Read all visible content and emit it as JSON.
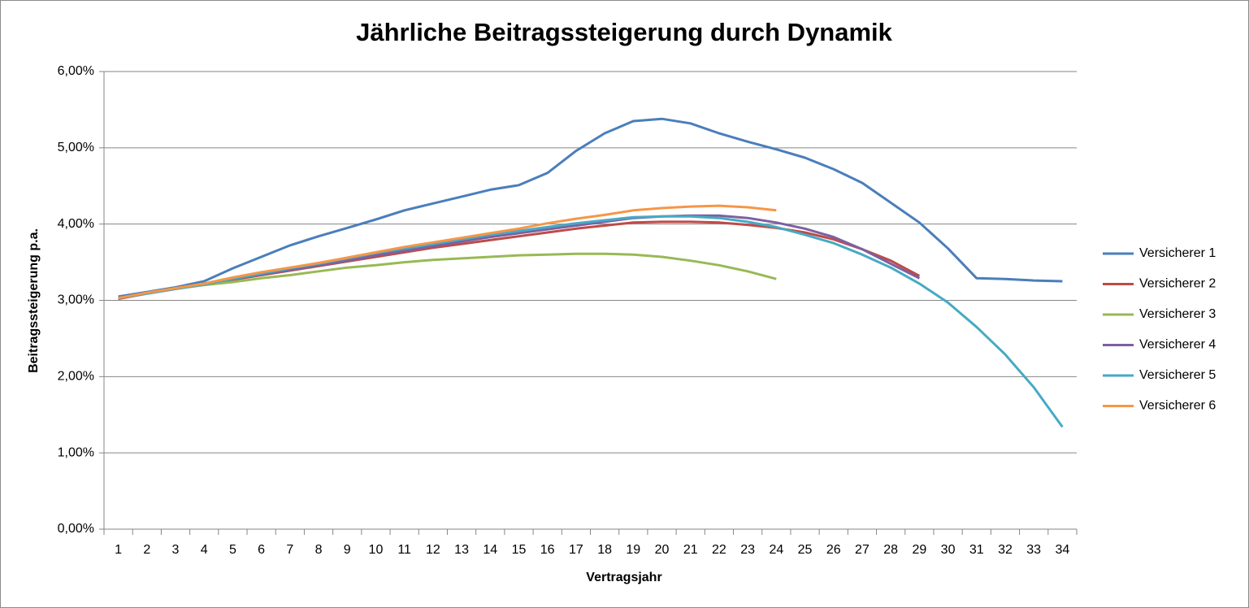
{
  "chart_data": {
    "type": "line",
    "title": "Jährliche Beitragssteigerung durch Dynamik",
    "xlabel": "Vertragsjahr",
    "ylabel": "Beitragssteigerung p.a.",
    "categories": [
      "1",
      "2",
      "3",
      "4",
      "5",
      "6",
      "7",
      "8",
      "9",
      "10",
      "11",
      "12",
      "13",
      "14",
      "15",
      "16",
      "17",
      "18",
      "19",
      "20",
      "21",
      "22",
      "23",
      "24",
      "25",
      "26",
      "27",
      "28",
      "29",
      "30",
      "31",
      "32",
      "33",
      "34"
    ],
    "ylim": [
      0,
      6
    ],
    "yticks": [
      {
        "value": 0,
        "label": "0,00%"
      },
      {
        "value": 1,
        "label": "1,00%"
      },
      {
        "value": 2,
        "label": "2,00%"
      },
      {
        "value": 3,
        "label": "3,00%"
      },
      {
        "value": 4,
        "label": "4,00%"
      },
      {
        "value": 5,
        "label": "5,00%"
      },
      {
        "value": 6,
        "label": "6,00%"
      }
    ],
    "grid": true,
    "legend": "right",
    "series": [
      {
        "name": "Versicherer 1",
        "color": "#4a7ebb",
        "values": [
          3.05,
          3.11,
          3.17,
          3.25,
          3.42,
          3.57,
          3.72,
          3.84,
          3.95,
          4.06,
          4.18,
          4.27,
          4.36,
          4.45,
          4.51,
          4.67,
          4.96,
          5.19,
          5.35,
          5.38,
          5.32,
          5.19,
          5.08,
          4.98,
          4.87,
          4.72,
          4.54,
          4.28,
          4.02,
          3.68,
          3.29,
          3.28,
          3.26,
          3.25
        ]
      },
      {
        "name": "Versicherer 2",
        "color": "#be4b48",
        "values": [
          3.02,
          3.09,
          3.15,
          3.21,
          3.27,
          3.33,
          3.39,
          3.45,
          3.51,
          3.57,
          3.63,
          3.69,
          3.74,
          3.79,
          3.84,
          3.89,
          3.94,
          3.98,
          4.02,
          4.03,
          4.03,
          4.02,
          3.99,
          3.95,
          3.89,
          3.8,
          3.67,
          3.52,
          3.32,
          null,
          null,
          null,
          null,
          null
        ]
      },
      {
        "name": "Versicherer 3",
        "color": "#98b954",
        "values": [
          3.03,
          3.09,
          3.15,
          3.2,
          3.24,
          3.29,
          3.33,
          3.38,
          3.43,
          3.46,
          3.5,
          3.53,
          3.55,
          3.57,
          3.59,
          3.6,
          3.61,
          3.61,
          3.6,
          3.57,
          3.52,
          3.46,
          3.38,
          3.28,
          null,
          null,
          null,
          null,
          null,
          null,
          null,
          null,
          null,
          null
        ]
      },
      {
        "name": "Versicherer 4",
        "color": "#7d60a0",
        "values": [
          3.03,
          3.09,
          3.15,
          3.21,
          3.28,
          3.34,
          3.4,
          3.46,
          3.52,
          3.59,
          3.65,
          3.71,
          3.77,
          3.83,
          3.88,
          3.93,
          3.98,
          4.03,
          4.08,
          4.1,
          4.11,
          4.11,
          4.08,
          4.02,
          3.94,
          3.83,
          3.67,
          3.48,
          3.29,
          null,
          null,
          null,
          null,
          null
        ]
      },
      {
        "name": "Versicherer 5",
        "color": "#46aac5",
        "values": [
          3.03,
          3.09,
          3.15,
          3.21,
          3.28,
          3.35,
          3.42,
          3.48,
          3.55,
          3.62,
          3.68,
          3.74,
          3.8,
          3.86,
          3.91,
          3.96,
          4.01,
          4.05,
          4.09,
          4.1,
          4.1,
          4.08,
          4.03,
          3.96,
          3.86,
          3.75,
          3.6,
          3.43,
          3.22,
          2.97,
          2.65,
          2.29,
          1.86,
          1.34
        ]
      },
      {
        "name": "Versicherer 6",
        "color": "#f79646",
        "values": [
          3.03,
          3.1,
          3.16,
          3.22,
          3.3,
          3.37,
          3.43,
          3.49,
          3.56,
          3.63,
          3.7,
          3.76,
          3.82,
          3.88,
          3.94,
          4.01,
          4.07,
          4.12,
          4.18,
          4.21,
          4.23,
          4.24,
          4.22,
          4.18,
          null,
          null,
          null,
          null,
          null,
          null,
          null,
          null,
          null,
          null
        ]
      }
    ]
  }
}
